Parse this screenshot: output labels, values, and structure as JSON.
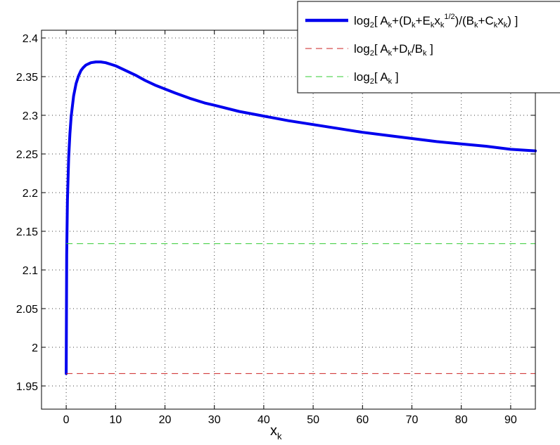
{
  "chart_data": {
    "type": "line",
    "xlabel": "x",
    "xlabel_sub": "k",
    "xlim": [
      -5,
      95
    ],
    "ylim": [
      1.92,
      2.41
    ],
    "xticks": [
      0,
      10,
      20,
      30,
      40,
      50,
      60,
      70,
      80,
      90
    ],
    "yticks": [
      1.95,
      2,
      2.05,
      2.1,
      2.15,
      2.2,
      2.25,
      2.3,
      2.35,
      2.4
    ],
    "grid": true,
    "legend_position": "top-right",
    "legend": {
      "entry0": {
        "t1": "log",
        "s1": "2",
        "t2": "[ A",
        "s2": "k",
        "t3": "+(D",
        "s3": "k",
        "t4": "+E",
        "s4": "k",
        "t5": "x",
        "s5": "k",
        "sup": "1/2",
        "t6": ")/(B",
        "s6": "k",
        "t7": "+C",
        "s7": "k",
        "t8": "x",
        "s8": "k",
        "t9": ") ]"
      },
      "entry1": {
        "t1": "log",
        "s1": "2",
        "t2": "[ A",
        "s2": "k",
        "t3": "+D",
        "s3": "k",
        "t4": "/B",
        "s4": "k",
        "t5": " ]"
      },
      "entry2": {
        "t1": "log",
        "s1": "2",
        "t2": "[ A",
        "s2": "k",
        "t3": " ]"
      }
    },
    "series": [
      {
        "style": "solid",
        "color": "#0000ee",
        "x": [
          0,
          0.1,
          0.25,
          0.5,
          0.75,
          1,
          1.5,
          2,
          2.5,
          3,
          3.5,
          4,
          5,
          6,
          7,
          8,
          9,
          10,
          12,
          14,
          16,
          18,
          20,
          22,
          25,
          28,
          30,
          35,
          40,
          45,
          50,
          55,
          60,
          65,
          70,
          75,
          80,
          85,
          90,
          95
        ],
        "y": [
          1.966,
          2.12,
          2.19,
          2.245,
          2.276,
          2.298,
          2.325,
          2.341,
          2.351,
          2.358,
          2.362,
          2.365,
          2.368,
          2.369,
          2.369,
          2.368,
          2.366,
          2.364,
          2.358,
          2.352,
          2.345,
          2.339,
          2.334,
          2.329,
          2.322,
          2.316,
          2.313,
          2.305,
          2.299,
          2.293,
          2.288,
          2.283,
          2.278,
          2.274,
          2.27,
          2.266,
          2.263,
          2.26,
          2.256,
          2.254
        ]
      },
      {
        "style": "dashed",
        "color": "#cc2222",
        "x": [
          0,
          95
        ],
        "y": [
          1.966,
          1.966
        ]
      },
      {
        "style": "dashed",
        "color": "#33cc33",
        "x": [
          0,
          95
        ],
        "y": [
          2.134,
          2.134
        ]
      }
    ]
  }
}
